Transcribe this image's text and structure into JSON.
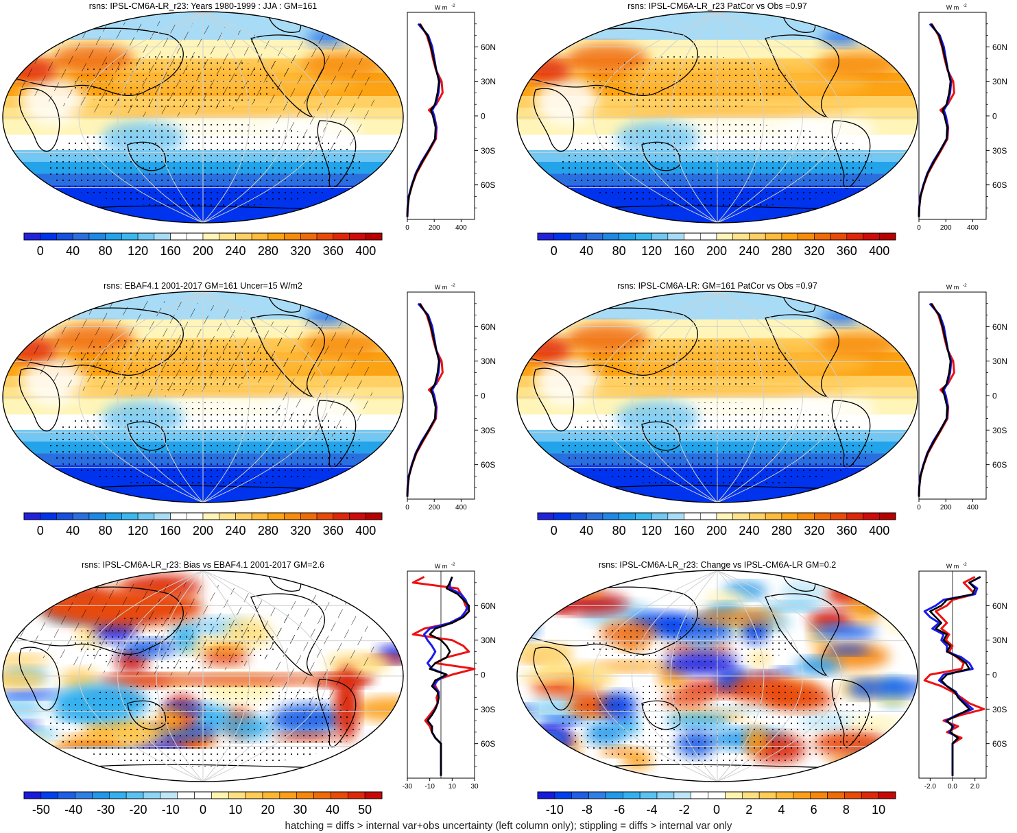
{
  "caption": "hatching = diffs > internal var+obs uncertainty (left column only); stippling = diffs > internal var only",
  "colors": {
    "abs_scale": [
      "#2222dd",
      "#0033ee",
      "#1550e0",
      "#2a6fe0",
      "#1e88e6",
      "#22a3ea",
      "#39b8f0",
      "#73c8f3",
      "#a8dcf6",
      "#ffffff",
      "#ffffff",
      "#fff5b8",
      "#ffe38a",
      "#ffd064",
      "#ffbb3a",
      "#fca314",
      "#f78c0a",
      "#f06a08",
      "#ea4a08",
      "#e02608",
      "#d00a0a",
      "#b80000"
    ],
    "anom_scale": [
      "#1a1add",
      "#0040ee",
      "#1e5fe6",
      "#2f7fe6",
      "#2298ea",
      "#34b0ef",
      "#5ac2f2",
      "#8fd4f5",
      "#bfe6f8",
      "#ffffff",
      "#ffffff",
      "#fff3b0",
      "#ffe080",
      "#ffcc55",
      "#ffb733",
      "#fc9f18",
      "#f6870c",
      "#ef6a08",
      "#e84a08",
      "#dc2a08",
      "#c80808"
    ],
    "lat_series": {
      "model": "#000000",
      "model_b": "#1a1aee",
      "obs": "#ee1111"
    }
  },
  "shared_lat_ticks": [
    "60N",
    "30N",
    "0",
    "30S",
    "60S"
  ],
  "units_label": "W m",
  "units_exp": "-2",
  "panels": [
    {
      "id": "p1",
      "title": "rsns: IPSL-CM6A-LR_r23: Years 1980-1999 : JJA : GM=161",
      "colorbar_labels": [
        "0",
        "40",
        "80",
        "120",
        "160",
        "200",
        "240",
        "280",
        "320",
        "360",
        "400"
      ],
      "zonal_xticks": [
        "0",
        "200",
        "400"
      ],
      "scale": "abs",
      "hatch": true,
      "stipple": true
    },
    {
      "id": "p2",
      "title": "rsns: IPSL-CM6A-LR_r23 PatCor vs Obs =0.97",
      "colorbar_labels": [
        "0",
        "40",
        "80",
        "120",
        "160",
        "200",
        "240",
        "280",
        "320",
        "360",
        "400"
      ],
      "zonal_xticks": [
        "0",
        "200",
        "400"
      ],
      "scale": "abs",
      "hatch": false,
      "stipple": true
    },
    {
      "id": "p3",
      "title": "rsns: EBAF4.1 2001-2017 GM=161 Uncer=15 W/m2",
      "colorbar_labels": [
        "0",
        "40",
        "80",
        "120",
        "160",
        "200",
        "240",
        "280",
        "320",
        "360",
        "400"
      ],
      "zonal_xticks": [
        "0",
        "200",
        "400"
      ],
      "scale": "abs",
      "hatch": true,
      "stipple": true
    },
    {
      "id": "p4",
      "title": "rsns: IPSL-CM6A-LR: GM=161 PatCor vs Obs =0.97",
      "colorbar_labels": [
        "0",
        "40",
        "80",
        "120",
        "160",
        "200",
        "240",
        "280",
        "320",
        "360",
        "400"
      ],
      "zonal_xticks": [
        "0",
        "200",
        "400"
      ],
      "scale": "abs",
      "hatch": false,
      "stipple": true
    },
    {
      "id": "p5",
      "title": "rsns: IPSL-CM6A-LR_r23: Bias vs EBAF4.1 2001-2017 GM=2.6",
      "colorbar_labels": [
        "-50",
        "-40",
        "-30",
        "-20",
        "-10",
        "0",
        "10",
        "20",
        "30",
        "40",
        "50"
      ],
      "zonal_xticks": [
        "-30",
        "-10",
        "10",
        "30"
      ],
      "scale": "anom",
      "hatch": true,
      "stipple": true
    },
    {
      "id": "p6",
      "title": "rsns: IPSL-CM6A-LR_r23: Change vs IPSL-CM6A-LR GM=0.2",
      "colorbar_labels": [
        "-10",
        "-8",
        "-6",
        "-4",
        "-2",
        "0",
        "2",
        "4",
        "6",
        "8",
        "10"
      ],
      "zonal_xticks": [
        "-2.0",
        "0.0",
        "2.0"
      ],
      "scale": "anom",
      "hatch": false,
      "stipple": true
    }
  ],
  "chart_data": [
    {
      "type": "heatmap",
      "title": "rsns: IPSL-CM6A-LR_r23: Years 1980-1999 : JJA : GM=161",
      "zonal_mean": {
        "xlim": [
          0,
          500
        ],
        "lat": [
          80,
          70,
          60,
          50,
          40,
          30,
          20,
          10,
          5,
          0,
          -10,
          -20,
          -30,
          -40,
          -50,
          -60,
          -70,
          -80,
          -88
        ],
        "series": [
          {
            "values": [
              90,
              150,
              175,
              195,
              215,
              235,
              225,
              205,
              175,
              190,
              210,
              205,
              160,
              110,
              65,
              35,
              12,
              2,
              0
            ]
          },
          {
            "values": [
              80,
              155,
              185,
              200,
              215,
              240,
              232,
              210,
              185,
              200,
              215,
              207,
              158,
              105,
              62,
              33,
              10,
              2,
              0
            ]
          },
          {
            "values": [
              95,
              145,
              172,
              190,
              212,
              255,
              262,
              215,
              160,
              200,
              218,
              212,
              165,
              115,
              68,
              36,
              12,
              2,
              0
            ]
          }
        ]
      }
    },
    {
      "type": "heatmap",
      "title": "rsns: IPSL-CM6A-LR_r23 PatCor vs Obs =0.97",
      "zonal_mean": {
        "xlim": [
          0,
          500
        ],
        "lat": [
          80,
          70,
          60,
          50,
          40,
          30,
          20,
          10,
          5,
          0,
          -10,
          -20,
          -30,
          -40,
          -50,
          -60,
          -70,
          -80,
          -88
        ],
        "series": [
          {
            "values": [
              90,
              150,
              175,
              195,
              215,
              235,
              225,
              205,
              175,
              190,
              210,
              205,
              160,
              110,
              65,
              35,
              12,
              2,
              0
            ]
          },
          {
            "values": [
              80,
              155,
              185,
              200,
              215,
              240,
              232,
              210,
              185,
              200,
              215,
              207,
              158,
              105,
              62,
              33,
              10,
              2,
              0
            ]
          },
          {
            "values": [
              95,
              145,
              172,
              190,
              212,
              255,
              262,
              215,
              160,
              200,
              218,
              212,
              165,
              115,
              68,
              36,
              12,
              2,
              0
            ]
          }
        ]
      }
    },
    {
      "type": "heatmap",
      "title": "rsns: EBAF4.1 2001-2017 GM=161 Uncer=15 W/m2",
      "zonal_mean": {
        "xlim": [
          0,
          500
        ],
        "lat": [
          80,
          70,
          60,
          50,
          40,
          30,
          20,
          10,
          5,
          0,
          -10,
          -20,
          -30,
          -40,
          -50,
          -60,
          -70,
          -80,
          -88
        ],
        "series": [
          {
            "values": [
              90,
              150,
              175,
              195,
              215,
              235,
              225,
              205,
              175,
              190,
              210,
              205,
              160,
              110,
              65,
              35,
              12,
              2,
              0
            ]
          },
          {
            "values": [
              80,
              155,
              185,
              200,
              215,
              240,
              232,
              210,
              185,
              200,
              215,
              207,
              158,
              105,
              62,
              33,
              10,
              2,
              0
            ]
          },
          {
            "values": [
              95,
              145,
              172,
              190,
              212,
              255,
              262,
              215,
              160,
              200,
              218,
              212,
              165,
              115,
              68,
              36,
              12,
              2,
              0
            ]
          }
        ]
      }
    },
    {
      "type": "heatmap",
      "title": "rsns: IPSL-CM6A-LR: GM=161 PatCor vs Obs =0.97",
      "zonal_mean": {
        "xlim": [
          0,
          500
        ],
        "lat": [
          80,
          70,
          60,
          50,
          40,
          30,
          20,
          10,
          5,
          0,
          -10,
          -20,
          -30,
          -40,
          -50,
          -60,
          -70,
          -80,
          -88
        ],
        "series": [
          {
            "values": [
              90,
              150,
              175,
              195,
              215,
              235,
              225,
              205,
              175,
              190,
              210,
              205,
              160,
              110,
              65,
              35,
              12,
              2,
              0
            ]
          },
          {
            "values": [
              80,
              155,
              185,
              200,
              215,
              240,
              232,
              210,
              185,
              200,
              215,
              207,
              158,
              105,
              62,
              33,
              10,
              2,
              0
            ]
          },
          {
            "values": [
              95,
              145,
              172,
              190,
              212,
              255,
              262,
              215,
              160,
              200,
              218,
              212,
              165,
              115,
              68,
              36,
              12,
              2,
              0
            ]
          }
        ]
      }
    },
    {
      "type": "heatmap",
      "title": "rsns: IPSL-CM6A-LR_r23: Bias vs EBAF4.1 2001-2017 GM=2.6",
      "zonal_mean": {
        "xlim": [
          -30,
          30
        ],
        "lat": [
          85,
          80,
          75,
          70,
          65,
          60,
          55,
          50,
          45,
          40,
          35,
          30,
          25,
          20,
          15,
          10,
          5,
          0,
          -5,
          -10,
          -15,
          -20,
          -25,
          -30,
          -35,
          -40,
          -45,
          -50,
          -55,
          -60,
          -70,
          -80,
          -88
        ],
        "series": [
          {
            "values": [
              10,
              8,
              5,
              15,
              20,
              25,
              25,
              20,
              10,
              -5,
              -10,
              0,
              5,
              8,
              5,
              -5,
              -10,
              5,
              -5,
              -8,
              -3,
              -2,
              -3,
              -5,
              -8,
              -12,
              -8,
              -8,
              -5,
              0,
              0,
              0,
              0
            ]
          },
          {
            "values": [
              10,
              8,
              8,
              18,
              22,
              24,
              22,
              18,
              8,
              -10,
              -15,
              -12,
              -8,
              -5,
              -8,
              -12,
              -8,
              5,
              -3,
              -7,
              -2,
              -2,
              -3,
              -5,
              -8,
              -12,
              -8,
              -8,
              -5,
              0,
              0,
              0,
              0
            ]
          },
          {
            "values": [
              -15,
              -25,
              15,
              18,
              20,
              22,
              25,
              20,
              10,
              -15,
              -25,
              10,
              20,
              25,
              5,
              -5,
              30,
              10,
              -5,
              -5,
              -2,
              -4,
              -3,
              -6,
              -10,
              -14,
              -10,
              -8,
              -5,
              0,
              0,
              0,
              0
            ]
          }
        ]
      }
    },
    {
      "type": "heatmap",
      "title": "rsns: IPSL-CM6A-LR_r23: Change vs IPSL-CM6A-LR GM=0.2",
      "zonal_mean": {
        "xlim": [
          -3,
          3
        ],
        "lat": [
          85,
          80,
          75,
          70,
          65,
          60,
          55,
          50,
          45,
          40,
          35,
          30,
          25,
          20,
          15,
          10,
          5,
          0,
          -5,
          -10,
          -15,
          -20,
          -25,
          -30,
          -35,
          -40,
          -45,
          -50,
          -55,
          -60,
          -70,
          -80,
          -88
        ],
        "series": [
          {
            "values": [
              2.5,
              1.5,
              2.0,
              1.8,
              -0.5,
              -1.0,
              -2.0,
              -1.5,
              -1.0,
              -1.5,
              -0.5,
              -0.8,
              -0.2,
              -0.5,
              0.5,
              1.2,
              1.5,
              -0.5,
              -1.0,
              -0.5,
              0.2,
              0.5,
              1.0,
              1.5,
              0.5,
              -0.5,
              0.0,
              -0.2,
              0.5,
              0.0,
              0.0,
              0.0,
              0.0
            ]
          },
          {
            "values": [
              2.5,
              1.5,
              2.2,
              2.0,
              -0.8,
              -1.5,
              -2.5,
              -2.0,
              -1.2,
              -1.8,
              -0.8,
              -1.0,
              -0.5,
              -0.5,
              0.8,
              1.5,
              1.8,
              -0.8,
              -1.2,
              -0.5,
              0.3,
              0.6,
              1.2,
              1.8,
              0.4,
              -0.6,
              0.1,
              -0.3,
              0.5,
              0.0,
              0.0,
              0.0,
              0.0
            ]
          },
          {
            "values": [
              2.0,
              1.0,
              1.5,
              2.0,
              0.0,
              -0.5,
              -1.5,
              -1.0,
              -0.5,
              -1.0,
              -0.3,
              -0.6,
              0.0,
              -0.3,
              0.4,
              1.0,
              0.8,
              -2.0,
              -2.5,
              -1.0,
              0.0,
              0.8,
              1.5,
              2.8,
              0.8,
              -0.8,
              0.5,
              -0.5,
              0.8,
              0.0,
              0.0,
              0.0,
              0.0
            ]
          }
        ]
      }
    }
  ]
}
